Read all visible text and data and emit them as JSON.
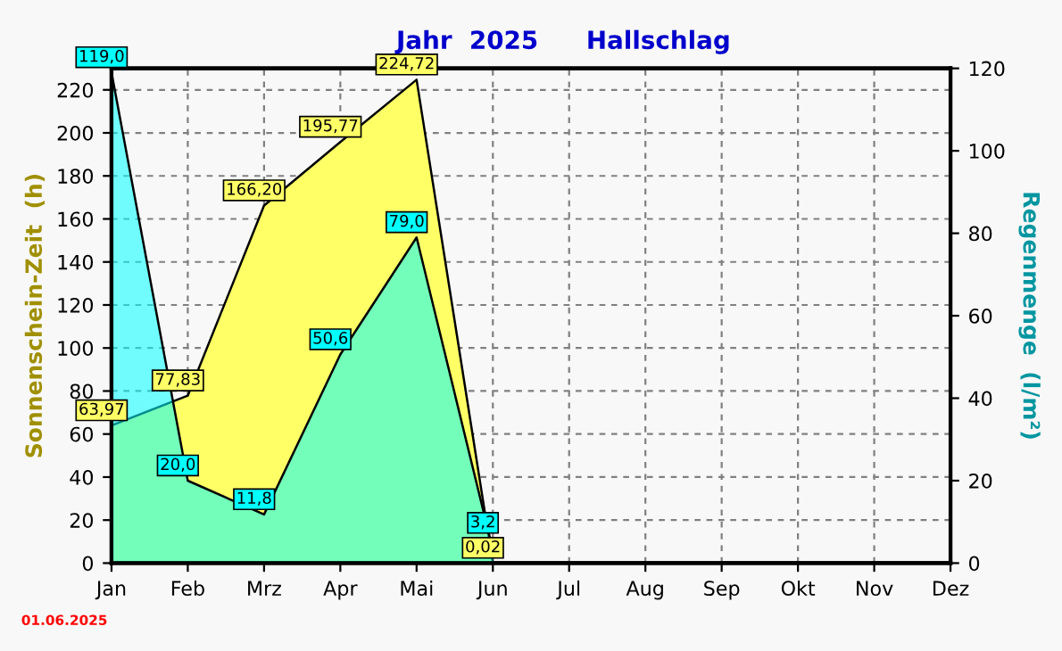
{
  "chart_data": {
    "type": "area",
    "title": "Jahr  2025",
    "subtitle": "Hallschlag",
    "ylabel": "Sonnenschein-Zeit  (h)",
    "y2label": "Regenmenge  (l/m²)",
    "categories": [
      "Jan",
      "Feb",
      "Mrz",
      "Apr",
      "Mai",
      "Jun",
      "Jul",
      "Aug",
      "Sep",
      "Okt",
      "Nov",
      "Dez"
    ],
    "series": [
      {
        "name": null,
        "color": "#ffff66",
        "values": [
          63.97,
          77.83,
          166.2,
          195.77,
          224.72,
          0.02,
          null,
          null,
          null,
          null,
          null,
          null
        ],
        "value_labels": [
          "63,97",
          "77,83",
          "166,20",
          "195,77",
          "224,72",
          "0,02",
          null,
          null,
          null,
          null,
          null,
          null
        ]
      },
      {
        "name": null,
        "color": "#00ffff",
        "axis": "y2",
        "values": [
          119.0,
          20.0,
          11.8,
          50.6,
          79.0,
          3.2,
          null,
          null,
          null,
          null,
          null,
          null
        ],
        "value_labels": [
          "119,0",
          "20,0",
          "11,8",
          "50,6",
          "79,0",
          "3,2",
          null,
          null,
          null,
          null,
          null,
          null
        ]
      }
    ],
    "ylim": [
      0,
      230
    ],
    "yticks": [
      0,
      20,
      40,
      60,
      80,
      100,
      120,
      140,
      160,
      180,
      200,
      220
    ],
    "y2lim": [
      0,
      120
    ],
    "y2ticks": [
      0,
      20,
      40,
      60,
      80,
      100,
      120
    ],
    "grid": true,
    "annotations": [
      "01.06.2025"
    ]
  }
}
